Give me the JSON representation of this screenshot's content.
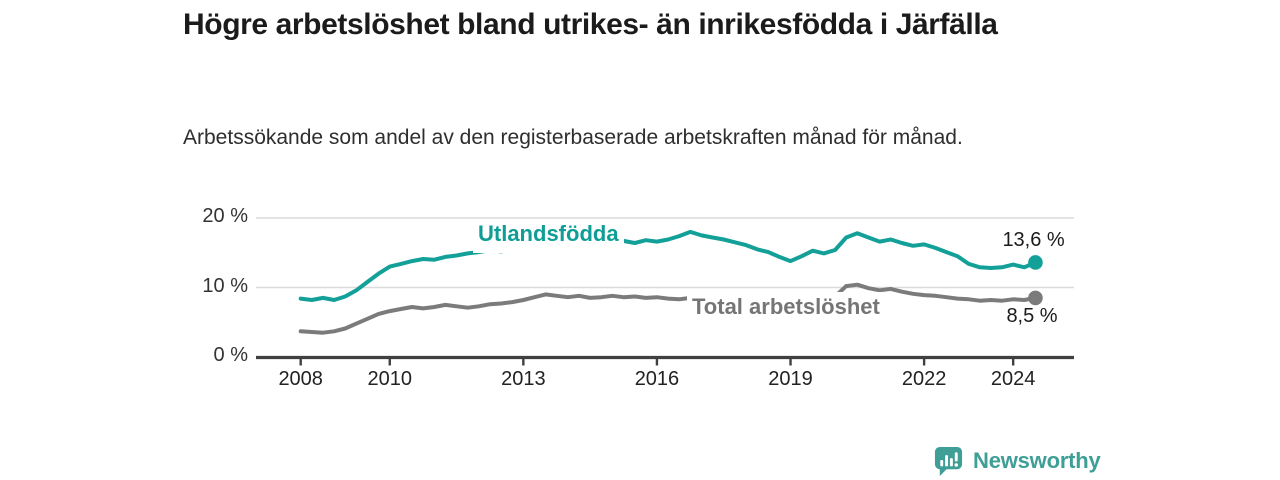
{
  "header": {
    "title": "Högre arbetslöshet bland utrikes- än inrikesfödda i Järfälla",
    "subtitle": "Arbetssökande som andel av den registerbaserade arbetskraften månad för månad."
  },
  "chart_data": {
    "type": "line",
    "title": "Högre arbetslöshet bland utrikes- än inrikesfödda i Järfälla",
    "xlabel": "",
    "ylabel": "",
    "x_unit": "year (monthly series)",
    "y_unit": "percent",
    "xlim": [
      2007.9,
      2025.3
    ],
    "ylim": [
      0,
      20
    ],
    "grid": "horizontal",
    "legend_position": "inline-labels",
    "yticks": [
      {
        "value": 0,
        "label": "0 %"
      },
      {
        "value": 10,
        "label": "10 %"
      },
      {
        "value": 20,
        "label": "20 %"
      }
    ],
    "xticks": [
      {
        "value": 2008,
        "label": "2008"
      },
      {
        "value": 2010,
        "label": "2010"
      },
      {
        "value": 2013,
        "label": "2013"
      },
      {
        "value": 2016,
        "label": "2016"
      },
      {
        "value": 2019,
        "label": "2019"
      },
      {
        "value": 2022,
        "label": "2022"
      },
      {
        "value": 2024,
        "label": "2024"
      }
    ],
    "x": [
      2008,
      2008.25,
      2008.5,
      2008.75,
      2009,
      2009.25,
      2009.5,
      2009.75,
      2010,
      2010.25,
      2010.5,
      2010.75,
      2011,
      2011.25,
      2011.5,
      2011.75,
      2012,
      2012.25,
      2012.5,
      2012.75,
      2013,
      2013.25,
      2013.5,
      2013.75,
      2014,
      2014.25,
      2014.5,
      2014.75,
      2015,
      2015.25,
      2015.5,
      2015.75,
      2016,
      2016.25,
      2016.5,
      2016.75,
      2017,
      2017.25,
      2017.5,
      2017.75,
      2018,
      2018.25,
      2018.5,
      2018.75,
      2019,
      2019.25,
      2019.5,
      2019.75,
      2020,
      2020.25,
      2020.5,
      2020.75,
      2021,
      2021.25,
      2021.5,
      2021.75,
      2022,
      2022.25,
      2022.5,
      2022.75,
      2023,
      2023.25,
      2023.5,
      2023.75,
      2024,
      2024.25,
      2024.5
    ],
    "series": [
      {
        "name": "Utlandsfödda",
        "color": "#13a098",
        "end_label": "13,6 %",
        "end_value": 13.6,
        "values": [
          8.4,
          8.2,
          8.5,
          8.2,
          8.7,
          9.6,
          10.8,
          12.0,
          13.0,
          13.4,
          13.8,
          14.1,
          14.0,
          14.4,
          14.6,
          14.9,
          15.1,
          15.4,
          15.2,
          15.5,
          15.7,
          15.5,
          15.8,
          16.0,
          15.9,
          16.2,
          16.0,
          16.3,
          16.6,
          16.7,
          16.4,
          16.8,
          16.6,
          16.9,
          17.4,
          18.0,
          17.5,
          17.2,
          16.9,
          16.5,
          16.1,
          15.5,
          15.1,
          14.4,
          13.8,
          14.5,
          15.3,
          14.9,
          15.4,
          17.2,
          17.8,
          17.2,
          16.6,
          16.9,
          16.4,
          16.0,
          16.2,
          15.7,
          15.1,
          14.5,
          13.4,
          12.9,
          12.8,
          12.9,
          13.3,
          12.9,
          13.6
        ]
      },
      {
        "name": "Total arbetslöshet",
        "color": "#7b7b7b",
        "end_label": "8,5 %",
        "end_value": 8.5,
        "values": [
          3.7,
          3.6,
          3.5,
          3.7,
          4.1,
          4.8,
          5.5,
          6.2,
          6.6,
          6.9,
          7.2,
          7.0,
          7.2,
          7.5,
          7.3,
          7.1,
          7.3,
          7.6,
          7.7,
          7.9,
          8.2,
          8.6,
          9.0,
          8.8,
          8.6,
          8.8,
          8.5,
          8.6,
          8.8,
          8.6,
          8.7,
          8.5,
          8.6,
          8.4,
          8.3,
          8.5,
          8.6,
          8.4,
          8.3,
          8.2,
          8.1,
          8.0,
          7.9,
          7.8,
          7.9,
          8.0,
          8.1,
          8.3,
          8.7,
          10.2,
          10.4,
          9.9,
          9.6,
          9.8,
          9.4,
          9.1,
          8.9,
          8.8,
          8.6,
          8.4,
          8.3,
          8.1,
          8.2,
          8.1,
          8.3,
          8.2,
          8.5
        ]
      }
    ]
  },
  "footer": {
    "brand": "Newsworthy",
    "brand_color": "#3f9e96",
    "logo_icon": "bar-chart-speech-bubble-icon"
  }
}
